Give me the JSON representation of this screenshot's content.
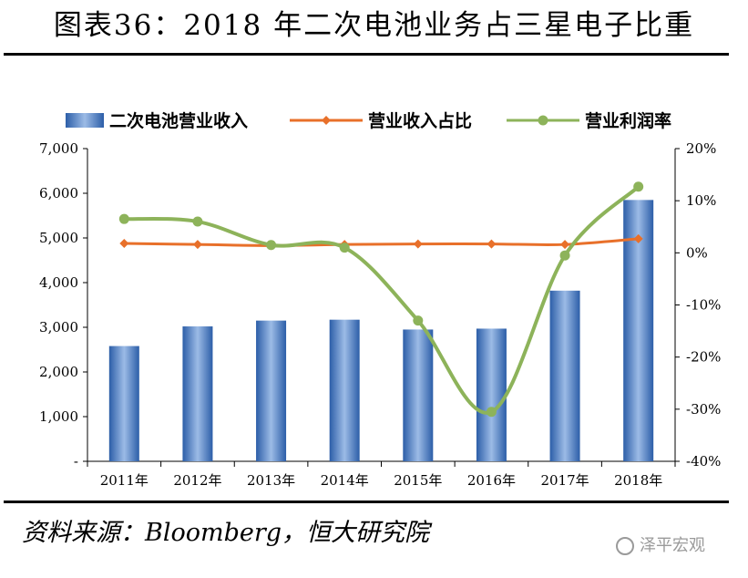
{
  "header": {
    "title": "图表36：2018 年二次电池业务占三星电子比重"
  },
  "footer": {
    "source": "资料来源：Bloomberg，恒大研究院",
    "watermark": "泽平宏观"
  },
  "chart_data": {
    "type": "bar",
    "title": "图表36：2018 年二次电池业务占三星电子比重",
    "categories": [
      "2011年",
      "2012年",
      "2013年",
      "2014年",
      "2015年",
      "2016年",
      "2017年",
      "2018年"
    ],
    "series": [
      {
        "name": "二次电池营业收入",
        "type": "bar",
        "axis": "left",
        "color": "#4a7fc4",
        "values": [
          2580,
          3020,
          3150,
          3170,
          2950,
          2970,
          3820,
          5850
        ]
      },
      {
        "name": "营业收入占比",
        "type": "line",
        "axis": "right",
        "color": "#e8702a",
        "values": [
          1.8,
          1.6,
          1.4,
          1.6,
          1.7,
          1.7,
          1.6,
          2.7
        ]
      },
      {
        "name": "营业利润率",
        "type": "line",
        "axis": "right",
        "color": "#8db35a",
        "values": [
          6.5,
          6.0,
          1.5,
          1.0,
          -13.0,
          -30.5,
          -0.5,
          12.7
        ]
      }
    ],
    "y_left": {
      "ylim": [
        0,
        7000
      ],
      "ticks": [
        "-",
        "1,000",
        "2,000",
        "3,000",
        "4,000",
        "5,000",
        "6,000",
        "7,000"
      ]
    },
    "y_right": {
      "ylim": [
        -40,
        20
      ],
      "ticks": [
        "-40%",
        "-30%",
        "-20%",
        "-10%",
        "0%",
        "10%",
        "20%"
      ]
    },
    "legend_position": "top"
  }
}
